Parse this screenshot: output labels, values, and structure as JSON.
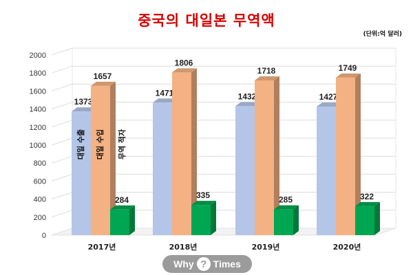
{
  "chart_data": {
    "type": "bar",
    "title": "중국의 대일본 무역액",
    "unit_note": "(단위:억 달러)",
    "categories": [
      "2017년",
      "2018년",
      "2019년",
      "2020년"
    ],
    "series": [
      {
        "name": "대일 수출",
        "values": [
          1373,
          1471,
          1432,
          1427
        ],
        "color": "#b4c6e7"
      },
      {
        "name": "대일 수입",
        "values": [
          1657,
          1806,
          1718,
          1749
        ],
        "color": "#f4b183"
      },
      {
        "name": "무역 적자",
        "values": [
          284,
          335,
          285,
          322
        ],
        "color": "#00a651"
      }
    ],
    "data_labels": [
      [
        "1373",
        "1471",
        "1432",
        "1427"
      ],
      [
        "1657",
        "1806",
        "1718",
        "1749"
      ],
      [
        "284",
        "335",
        "285",
        "322"
      ]
    ],
    "y_ticks": [
      "0",
      "200",
      "400",
      "600",
      "800",
      "1000",
      "1200",
      "1400",
      "1600",
      "1800",
      "2000"
    ],
    "ylim": [
      0,
      2000
    ],
    "grid": true,
    "legend": "inline-in-bars",
    "style": "3d-bar"
  },
  "watermark": {
    "left": "Why",
    "mid": "?",
    "right": "Times"
  }
}
